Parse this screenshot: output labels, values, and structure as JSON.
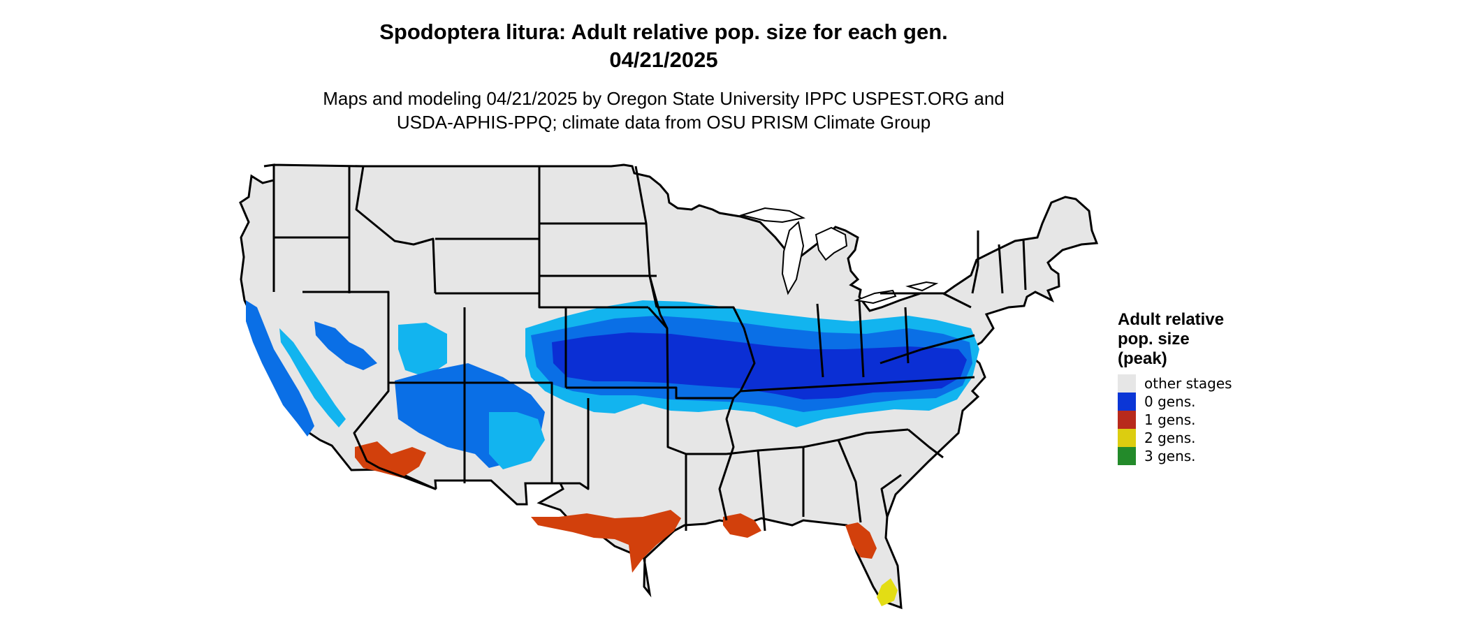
{
  "title": {
    "line1": "Spodoptera litura: Adult relative pop. size for each gen.",
    "line2": "04/21/2025"
  },
  "subtitle": {
    "line1": "Maps and modeling 04/21/2025 by Oregon State University IPPC USPEST.ORG and",
    "line2": "USDA-APHIS-PPQ; climate data from OSU PRISM Climate Group"
  },
  "legend": {
    "title_line1": "Adult relative",
    "title_line2": "pop. size",
    "title_line3": "(peak)",
    "items": [
      {
        "label": "other stages",
        "color": "#e6e6e6"
      },
      {
        "label": "0 gens.",
        "color": "#0b36d6"
      },
      {
        "label": "1 gens.",
        "color": "#b82a1c"
      },
      {
        "label": "2 gens.",
        "color": "#dccd10"
      },
      {
        "label": "3 gens.",
        "color": "#238a2a"
      }
    ]
  },
  "map_colors": {
    "land": "#e6e6e6",
    "border": "#000000",
    "blue_light": "#12b4ef",
    "blue_mid": "#0a6fe6",
    "blue_dark": "#0b2fd4",
    "red": "#d2400c",
    "yellow": "#e3dd14"
  }
}
